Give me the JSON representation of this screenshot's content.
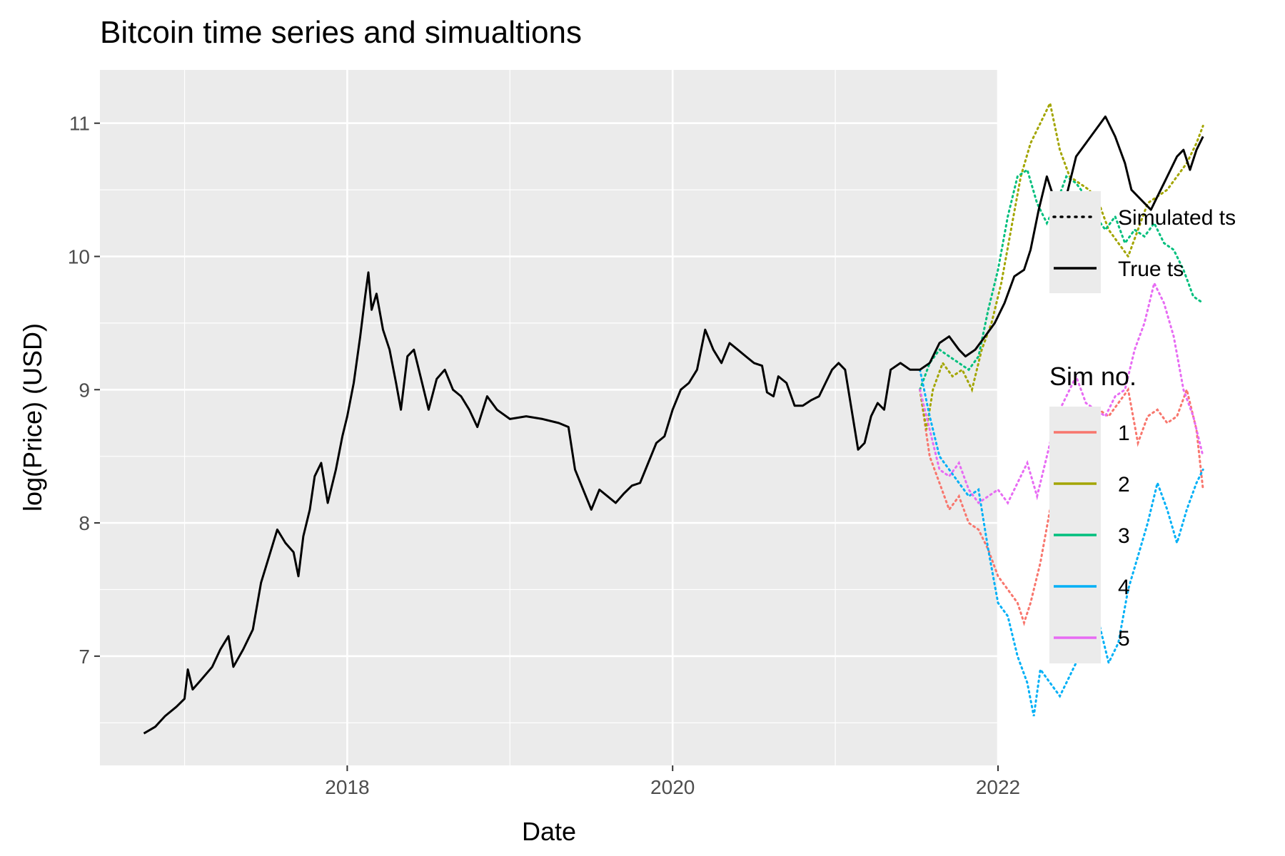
{
  "chart_data": {
    "type": "line",
    "title": "Bitcoin time series and simualtions",
    "xlabel": "Date",
    "ylabel": "log(Price) (USD)",
    "xlim": [
      2016.48,
      2022.0
    ],
    "ylim": [
      6.18,
      11.4
    ],
    "x_ticks": [
      2018,
      2020,
      2022
    ],
    "y_ticks": [
      7,
      8,
      9,
      10,
      11
    ],
    "grid": true,
    "legend_placement": "right",
    "linetype_legend": {
      "items": [
        {
          "label": "Simulated ts",
          "style": "dotted"
        },
        {
          "label": "True ts",
          "style": "solid"
        }
      ]
    },
    "color_legend": {
      "title": "Sim no.",
      "items": [
        {
          "label": "1",
          "color": "#F8766D"
        },
        {
          "label": "2",
          "color": "#A3A500"
        },
        {
          "label": "3",
          "color": "#00BF7D"
        },
        {
          "label": "4",
          "color": "#00B0F6"
        },
        {
          "label": "5",
          "color": "#E76BF3"
        }
      ]
    },
    "true_series": {
      "color": "#000000",
      "points": [
        [
          2016.75,
          6.42
        ],
        [
          2016.82,
          6.47
        ],
        [
          2016.88,
          6.55
        ],
        [
          2016.95,
          6.62
        ],
        [
          2017.0,
          6.68
        ],
        [
          2017.02,
          6.9
        ],
        [
          2017.05,
          6.75
        ],
        [
          2017.1,
          6.82
        ],
        [
          2017.17,
          6.92
        ],
        [
          2017.22,
          7.05
        ],
        [
          2017.27,
          7.15
        ],
        [
          2017.3,
          6.92
        ],
        [
          2017.36,
          7.05
        ],
        [
          2017.42,
          7.2
        ],
        [
          2017.47,
          7.55
        ],
        [
          2017.52,
          7.75
        ],
        [
          2017.57,
          7.95
        ],
        [
          2017.62,
          7.85
        ],
        [
          2017.67,
          7.78
        ],
        [
          2017.7,
          7.6
        ],
        [
          2017.73,
          7.9
        ],
        [
          2017.77,
          8.1
        ],
        [
          2017.8,
          8.35
        ],
        [
          2017.84,
          8.45
        ],
        [
          2017.88,
          8.15
        ],
        [
          2017.93,
          8.4
        ],
        [
          2017.97,
          8.65
        ],
        [
          2018.0,
          8.8
        ],
        [
          2018.04,
          9.05
        ],
        [
          2018.08,
          9.4
        ],
        [
          2018.11,
          9.7
        ],
        [
          2018.13,
          9.88
        ],
        [
          2018.15,
          9.6
        ],
        [
          2018.18,
          9.72
        ],
        [
          2018.22,
          9.45
        ],
        [
          2018.26,
          9.3
        ],
        [
          2018.3,
          9.05
        ],
        [
          2018.33,
          8.85
        ],
        [
          2018.37,
          9.25
        ],
        [
          2018.41,
          9.3
        ],
        [
          2018.45,
          9.1
        ],
        [
          2018.5,
          8.85
        ],
        [
          2018.55,
          9.08
        ],
        [
          2018.6,
          9.15
        ],
        [
          2018.65,
          9.0
        ],
        [
          2018.7,
          8.95
        ],
        [
          2018.75,
          8.85
        ],
        [
          2018.8,
          8.72
        ],
        [
          2018.86,
          8.95
        ],
        [
          2018.92,
          8.85
        ],
        [
          2019.0,
          8.78
        ],
        [
          2019.1,
          8.8
        ],
        [
          2019.2,
          8.78
        ],
        [
          2019.3,
          8.75
        ],
        [
          2019.36,
          8.72
        ],
        [
          2019.4,
          8.4
        ],
        [
          2019.45,
          8.25
        ],
        [
          2019.5,
          8.1
        ],
        [
          2019.55,
          8.25
        ],
        [
          2019.6,
          8.2
        ],
        [
          2019.65,
          8.15
        ],
        [
          2019.7,
          8.22
        ],
        [
          2019.75,
          8.28
        ],
        [
          2019.8,
          8.3
        ],
        [
          2019.85,
          8.45
        ],
        [
          2019.9,
          8.6
        ],
        [
          2019.95,
          8.65
        ],
        [
          2020.0,
          8.85
        ],
        [
          2020.05,
          9.0
        ],
        [
          2020.1,
          9.05
        ],
        [
          2020.15,
          9.15
        ],
        [
          2020.2,
          9.45
        ],
        [
          2020.25,
          9.3
        ],
        [
          2020.3,
          9.2
        ],
        [
          2020.35,
          9.35
        ],
        [
          2020.4,
          9.3
        ],
        [
          2020.45,
          9.25
        ],
        [
          2020.5,
          9.2
        ],
        [
          2020.55,
          9.18
        ],
        [
          2020.58,
          8.98
        ],
        [
          2020.62,
          8.95
        ],
        [
          2020.65,
          9.1
        ],
        [
          2020.7,
          9.05
        ],
        [
          2020.75,
          8.88
        ],
        [
          2020.8,
          8.88
        ],
        [
          2020.85,
          8.92
        ],
        [
          2020.9,
          8.95
        ],
        [
          2020.94,
          9.05
        ],
        [
          2020.98,
          9.15
        ],
        [
          2021.02,
          9.2
        ],
        [
          2021.06,
          9.15
        ],
        [
          2021.1,
          8.85
        ],
        [
          2021.14,
          8.55
        ],
        [
          2021.18,
          8.6
        ],
        [
          2021.22,
          8.8
        ],
        [
          2021.26,
          8.9
        ],
        [
          2021.3,
          8.85
        ],
        [
          2021.34,
          9.15
        ],
        [
          2021.4,
          9.2
        ],
        [
          2021.46,
          9.15
        ],
        [
          2021.52,
          9.15
        ],
        [
          2021.58,
          9.2
        ],
        [
          2021.64,
          9.35
        ],
        [
          2021.7,
          9.4
        ],
        [
          2021.76,
          9.3
        ],
        [
          2021.8,
          9.25
        ],
        [
          2021.86,
          9.3
        ],
        [
          2021.92,
          9.4
        ],
        [
          2021.98,
          9.5
        ],
        [
          2022.04,
          9.65
        ],
        [
          2022.1,
          9.85
        ],
        [
          2022.16,
          9.9
        ],
        [
          2022.2,
          10.05
        ],
        [
          2022.25,
          10.35
        ],
        [
          2022.3,
          10.6
        ],
        [
          2022.34,
          10.45
        ],
        [
          2022.38,
          10.2
        ],
        [
          2022.42,
          10.45
        ],
        [
          2022.48,
          10.75
        ],
        [
          2022.54,
          10.85
        ],
        [
          2022.6,
          10.95
        ],
        [
          2022.66,
          11.05
        ],
        [
          2022.72,
          10.9
        ],
        [
          2022.78,
          10.7
        ],
        [
          2022.82,
          10.5
        ],
        [
          2022.86,
          10.45
        ],
        [
          2022.9,
          10.4
        ],
        [
          2022.94,
          10.35
        ],
        [
          2022.98,
          10.45
        ],
        [
          2023.02,
          10.55
        ],
        [
          2023.06,
          10.65
        ],
        [
          2023.1,
          10.75
        ],
        [
          2023.14,
          10.8
        ],
        [
          2023.18,
          10.65
        ],
        [
          2023.22,
          10.8
        ],
        [
          2023.26,
          10.9
        ]
      ]
    },
    "simulated_series": [
      {
        "label": "1",
        "color": "#F8766D",
        "points": [
          [
            2021.52,
            9.0
          ],
          [
            2021.58,
            8.5
          ],
          [
            2021.64,
            8.3
          ],
          [
            2021.7,
            8.1
          ],
          [
            2021.76,
            8.2
          ],
          [
            2021.82,
            8.0
          ],
          [
            2021.88,
            7.95
          ],
          [
            2021.94,
            7.8
          ],
          [
            2022.0,
            7.6
          ],
          [
            2022.06,
            7.5
          ],
          [
            2022.12,
            7.4
          ],
          [
            2022.16,
            7.25
          ],
          [
            2022.2,
            7.4
          ],
          [
            2022.26,
            7.7
          ],
          [
            2022.32,
            8.1
          ],
          [
            2022.38,
            8.4
          ],
          [
            2022.44,
            8.55
          ],
          [
            2022.5,
            8.6
          ],
          [
            2022.56,
            8.75
          ],
          [
            2022.62,
            8.85
          ],
          [
            2022.68,
            8.8
          ],
          [
            2022.74,
            8.9
          ],
          [
            2022.8,
            9.0
          ],
          [
            2022.86,
            8.6
          ],
          [
            2022.92,
            8.8
          ],
          [
            2022.98,
            8.85
          ],
          [
            2023.04,
            8.75
          ],
          [
            2023.1,
            8.8
          ],
          [
            2023.16,
            9.0
          ],
          [
            2023.22,
            8.7
          ],
          [
            2023.26,
            8.25
          ]
        ]
      },
      {
        "label": "2",
        "color": "#A3A500",
        "points": [
          [
            2021.52,
            9.0
          ],
          [
            2021.56,
            8.7
          ],
          [
            2021.6,
            9.0
          ],
          [
            2021.66,
            9.2
          ],
          [
            2021.72,
            9.1
          ],
          [
            2021.78,
            9.15
          ],
          [
            2021.84,
            9.0
          ],
          [
            2021.9,
            9.3
          ],
          [
            2021.96,
            9.5
          ],
          [
            2022.02,
            9.8
          ],
          [
            2022.08,
            10.2
          ],
          [
            2022.14,
            10.6
          ],
          [
            2022.2,
            10.85
          ],
          [
            2022.26,
            11.0
          ],
          [
            2022.32,
            11.15
          ],
          [
            2022.38,
            10.8
          ],
          [
            2022.44,
            10.6
          ],
          [
            2022.5,
            10.55
          ],
          [
            2022.56,
            10.5
          ],
          [
            2022.62,
            10.4
          ],
          [
            2022.68,
            10.2
          ],
          [
            2022.74,
            10.1
          ],
          [
            2022.8,
            10.0
          ],
          [
            2022.86,
            10.2
          ],
          [
            2022.92,
            10.4
          ],
          [
            2022.98,
            10.45
          ],
          [
            2023.04,
            10.5
          ],
          [
            2023.1,
            10.6
          ],
          [
            2023.16,
            10.7
          ],
          [
            2023.22,
            10.85
          ],
          [
            2023.26,
            10.98
          ]
        ]
      },
      {
        "label": "3",
        "color": "#00BF7D",
        "points": [
          [
            2021.52,
            9.0
          ],
          [
            2021.58,
            9.2
          ],
          [
            2021.64,
            9.3
          ],
          [
            2021.7,
            9.25
          ],
          [
            2021.76,
            9.2
          ],
          [
            2021.82,
            9.15
          ],
          [
            2021.88,
            9.25
          ],
          [
            2021.94,
            9.6
          ],
          [
            2022.0,
            9.9
          ],
          [
            2022.06,
            10.3
          ],
          [
            2022.12,
            10.6
          ],
          [
            2022.18,
            10.65
          ],
          [
            2022.24,
            10.4
          ],
          [
            2022.3,
            10.25
          ],
          [
            2022.36,
            10.4
          ],
          [
            2022.42,
            10.6
          ],
          [
            2022.48,
            10.55
          ],
          [
            2022.54,
            10.45
          ],
          [
            2022.6,
            10.3
          ],
          [
            2022.66,
            10.2
          ],
          [
            2022.72,
            10.3
          ],
          [
            2022.78,
            10.1
          ],
          [
            2022.84,
            10.2
          ],
          [
            2022.9,
            10.15
          ],
          [
            2022.96,
            10.25
          ],
          [
            2023.02,
            10.1
          ],
          [
            2023.08,
            10.05
          ],
          [
            2023.14,
            9.9
          ],
          [
            2023.2,
            9.7
          ],
          [
            2023.26,
            9.65
          ]
        ]
      },
      {
        "label": "4",
        "color": "#00B0F6",
        "points": [
          [
            2021.52,
            9.15
          ],
          [
            2021.58,
            8.8
          ],
          [
            2021.64,
            8.5
          ],
          [
            2021.7,
            8.4
          ],
          [
            2021.76,
            8.3
          ],
          [
            2021.82,
            8.2
          ],
          [
            2021.88,
            8.25
          ],
          [
            2021.94,
            7.8
          ],
          [
            2022.0,
            7.4
          ],
          [
            2022.06,
            7.3
          ],
          [
            2022.12,
            7.0
          ],
          [
            2022.18,
            6.8
          ],
          [
            2022.22,
            6.55
          ],
          [
            2022.26,
            6.9
          ],
          [
            2022.32,
            6.8
          ],
          [
            2022.38,
            6.7
          ],
          [
            2022.44,
            6.85
          ],
          [
            2022.5,
            7.0
          ],
          [
            2022.56,
            7.2
          ],
          [
            2022.62,
            7.25
          ],
          [
            2022.68,
            6.95
          ],
          [
            2022.74,
            7.1
          ],
          [
            2022.8,
            7.5
          ],
          [
            2022.86,
            7.75
          ],
          [
            2022.92,
            8.0
          ],
          [
            2022.98,
            8.3
          ],
          [
            2023.04,
            8.1
          ],
          [
            2023.1,
            7.85
          ],
          [
            2023.16,
            8.1
          ],
          [
            2023.22,
            8.3
          ],
          [
            2023.26,
            8.4
          ]
        ]
      },
      {
        "label": "5",
        "color": "#E76BF3",
        "points": [
          [
            2021.52,
            9.0
          ],
          [
            2021.58,
            8.7
          ],
          [
            2021.64,
            8.4
          ],
          [
            2021.7,
            8.35
          ],
          [
            2021.76,
            8.45
          ],
          [
            2021.82,
            8.25
          ],
          [
            2021.88,
            8.15
          ],
          [
            2021.94,
            8.2
          ],
          [
            2022.0,
            8.25
          ],
          [
            2022.06,
            8.15
          ],
          [
            2022.12,
            8.3
          ],
          [
            2022.18,
            8.45
          ],
          [
            2022.24,
            8.2
          ],
          [
            2022.3,
            8.5
          ],
          [
            2022.36,
            8.8
          ],
          [
            2022.42,
            8.95
          ],
          [
            2022.48,
            9.1
          ],
          [
            2022.54,
            8.9
          ],
          [
            2022.6,
            8.85
          ],
          [
            2022.66,
            8.8
          ],
          [
            2022.72,
            8.95
          ],
          [
            2022.78,
            9.0
          ],
          [
            2022.84,
            9.3
          ],
          [
            2022.9,
            9.5
          ],
          [
            2022.96,
            9.8
          ],
          [
            2023.02,
            9.65
          ],
          [
            2023.08,
            9.4
          ],
          [
            2023.14,
            9.0
          ],
          [
            2023.2,
            8.8
          ],
          [
            2023.26,
            8.5
          ]
        ]
      }
    ]
  }
}
